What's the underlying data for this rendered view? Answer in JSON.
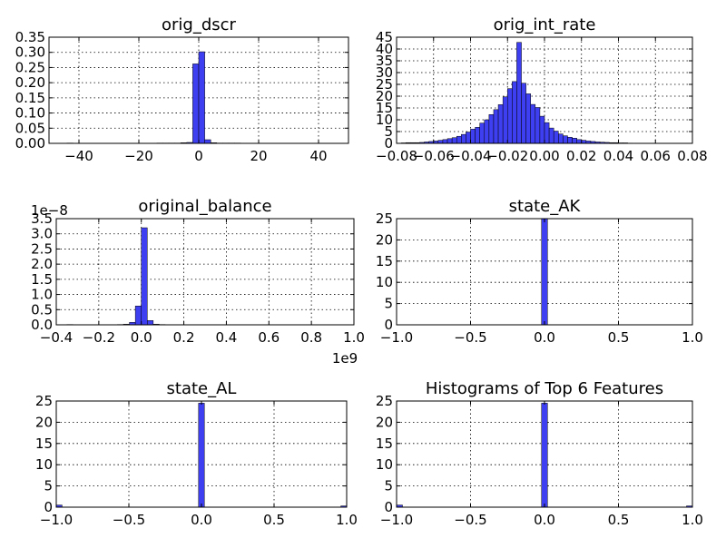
{
  "figure": {
    "bar_color": "#3f3ff2",
    "edge_color": "#000000"
  },
  "chart_data": [
    {
      "type": "bar",
      "title": "orig_dscr",
      "xlabel": "",
      "ylabel": "",
      "xlim": [
        -50,
        50
      ],
      "ylim": [
        0,
        0.35
      ],
      "xticks": [
        -40,
        -20,
        0,
        20,
        40
      ],
      "xtick_labels": [
        "−40",
        "−20",
        "0",
        "20",
        "40"
      ],
      "yticks": [
        0.0,
        0.05,
        0.1,
        0.15,
        0.2,
        0.25,
        0.3,
        0.35
      ],
      "ytick_labels": [
        "0.00",
        "0.05",
        "0.10",
        "0.15",
        "0.20",
        "0.25",
        "0.30",
        "0.35"
      ],
      "y_offset_label": "",
      "x_offset_label": "",
      "grid": true,
      "bins": [
        [
          -44,
          -42,
          0.001
        ],
        [
          -14,
          -12,
          0.001
        ],
        [
          -12,
          -10,
          0.001
        ],
        [
          -10,
          -8,
          0.001
        ],
        [
          -8,
          -6,
          0.001
        ],
        [
          -6,
          -4,
          0.002
        ],
        [
          -4,
          -2,
          0.003
        ],
        [
          -2,
          0,
          0.262
        ],
        [
          0,
          2,
          0.302
        ],
        [
          2,
          4,
          0.012
        ],
        [
          4,
          6,
          0.002
        ],
        [
          6,
          8,
          0.001
        ],
        [
          8,
          10,
          0.001
        ],
        [
          10,
          12,
          0.001
        ],
        [
          12,
          14,
          0.001
        ]
      ]
    },
    {
      "type": "bar",
      "title": "orig_int_rate",
      "xlabel": "",
      "ylabel": "",
      "xlim": [
        -0.08,
        0.08
      ],
      "ylim": [
        0,
        45
      ],
      "xticks": [
        -0.08,
        -0.06,
        -0.04,
        -0.02,
        0.0,
        0.02,
        0.04,
        0.06,
        0.08
      ],
      "xtick_labels": [
        "−0.08",
        "−0.06",
        "−0.04",
        "−0.02",
        "0.00",
        "0.02",
        "0.04",
        "0.06",
        "0.08"
      ],
      "yticks": [
        0,
        5,
        10,
        15,
        20,
        25,
        30,
        35,
        40,
        45
      ],
      "ytick_labels": [
        "0",
        "5",
        "10",
        "15",
        "20",
        "25",
        "30",
        "35",
        "40",
        "45"
      ],
      "y_offset_label": "",
      "x_offset_label": "",
      "grid": true,
      "bin_start": -0.0775,
      "bin_width": 0.0025,
      "bin_values": [
        0.2,
        0.3,
        0.3,
        0.3,
        0.4,
        0.6,
        0.8,
        1.0,
        1.3,
        1.6,
        2.0,
        2.4,
        3.0,
        3.8,
        4.8,
        6.0,
        6.8,
        8.6,
        10.0,
        12.2,
        14.3,
        16.4,
        19.7,
        23.2,
        26.2,
        42.8,
        25.5,
        21.0,
        16.5,
        15.2,
        11.5,
        8.8,
        6.5,
        5.2,
        4.0,
        3.2,
        2.6,
        2.2,
        1.6,
        1.3,
        1.0,
        0.8,
        0.6,
        0.5,
        0.4,
        0.3,
        0.3,
        0.2,
        0.2,
        0.1
      ]
    },
    {
      "type": "bar",
      "title": "original_balance",
      "xlabel": "",
      "ylabel": "",
      "xlim": [
        -0.4,
        1.0
      ],
      "ylim": [
        0,
        3.5
      ],
      "xticks": [
        -0.4,
        -0.2,
        0.0,
        0.2,
        0.4,
        0.6,
        0.8,
        1.0
      ],
      "xtick_labels": [
        "−0.4",
        "−0.2",
        "0.0",
        "0.2",
        "0.4",
        "0.6",
        "0.8",
        "1.0"
      ],
      "yticks": [
        0.0,
        0.5,
        1.0,
        1.5,
        2.0,
        2.5,
        3.0,
        3.5
      ],
      "ytick_labels": [
        "0.0",
        "0.5",
        "1.0",
        "1.5",
        "2.0",
        "2.5",
        "3.0",
        "3.5"
      ],
      "y_offset_label": "1e−8",
      "x_offset_label": "1e9",
      "grid": true,
      "bins": [
        [
          -0.35,
          -0.322,
          0.01
        ],
        [
          -0.112,
          -0.084,
          0.01
        ],
        [
          -0.084,
          -0.056,
          0.02
        ],
        [
          -0.056,
          -0.028,
          0.08
        ],
        [
          -0.028,
          0.0,
          0.62
        ],
        [
          0.0,
          0.028,
          3.2
        ],
        [
          0.028,
          0.056,
          0.14
        ],
        [
          0.056,
          0.084,
          0.02
        ],
        [
          0.084,
          0.112,
          0.01
        ]
      ]
    },
    {
      "type": "bar",
      "title": "state_AK",
      "xlabel": "",
      "ylabel": "",
      "xlim": [
        -1.0,
        1.0
      ],
      "ylim": [
        0,
        25
      ],
      "xticks": [
        -1.0,
        -0.5,
        0.0,
        0.5,
        1.0
      ],
      "xtick_labels": [
        "−1.0",
        "−0.5",
        "0.0",
        "0.5",
        "1.0"
      ],
      "yticks": [
        0,
        5,
        10,
        15,
        20,
        25
      ],
      "ytick_labels": [
        "0",
        "5",
        "10",
        "15",
        "20",
        "25"
      ],
      "y_offset_label": "",
      "x_offset_label": "",
      "grid": true,
      "bins": [
        [
          -0.02,
          0.02,
          25.0
        ]
      ]
    },
    {
      "type": "bar",
      "title": "state_AL",
      "xlabel": "",
      "ylabel": "",
      "xlim": [
        -1.0,
        1.0
      ],
      "ylim": [
        0,
        25
      ],
      "xticks": [
        -1.0,
        -0.5,
        0.0,
        0.5,
        1.0
      ],
      "xtick_labels": [
        "−1.0",
        "−0.5",
        "0.0",
        "0.5",
        "1.0"
      ],
      "yticks": [
        0,
        5,
        10,
        15,
        20,
        25
      ],
      "ytick_labels": [
        "0",
        "5",
        "10",
        "15",
        "20",
        "25"
      ],
      "y_offset_label": "",
      "x_offset_label": "",
      "grid": true,
      "bins": [
        [
          -1.0,
          -0.96,
          0.5
        ],
        [
          -0.02,
          0.02,
          24.5
        ],
        [
          0.96,
          1.0,
          0.3
        ]
      ]
    },
    {
      "type": "bar",
      "title": "Histograms of Top 6 Features",
      "xlabel": "",
      "ylabel": "",
      "xlim": [
        -1.0,
        1.0
      ],
      "ylim": [
        0,
        25
      ],
      "xticks": [
        -1.0,
        -0.5,
        0.0,
        0.5,
        1.0
      ],
      "xtick_labels": [
        "−1.0",
        "−0.5",
        "0.0",
        "0.5",
        "1.0"
      ],
      "yticks": [
        0,
        5,
        10,
        15,
        20,
        25
      ],
      "ytick_labels": [
        "0",
        "5",
        "10",
        "15",
        "20",
        "25"
      ],
      "y_offset_label": "",
      "x_offset_label": "",
      "grid": true,
      "bins": [
        [
          -1.0,
          -0.96,
          0.5
        ],
        [
          -0.02,
          0.02,
          24.5
        ],
        [
          0.96,
          1.0,
          0.3
        ]
      ]
    }
  ]
}
